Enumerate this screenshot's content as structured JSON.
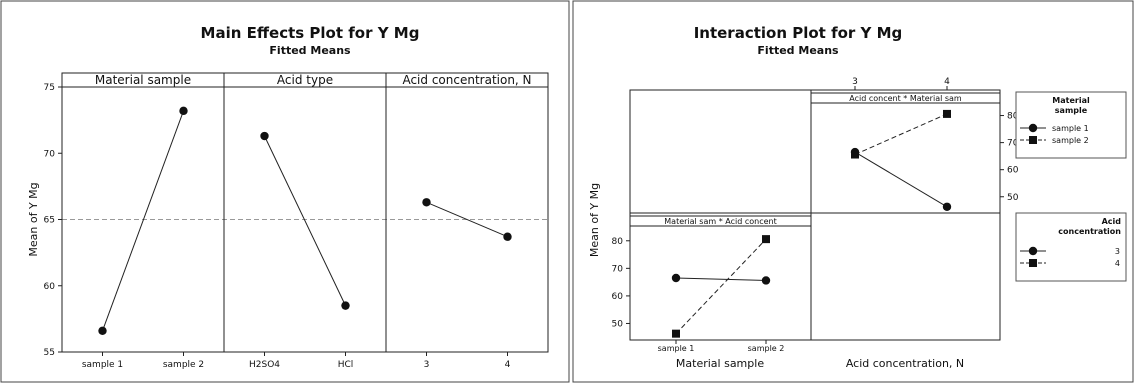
{
  "chart_data": [
    {
      "type": "line",
      "title": "Main Effects Plot for Y Mg",
      "subtitle": "Fitted Means",
      "ylabel": "Mean of Y Mg",
      "ylim": [
        55,
        75
      ],
      "yticks": [
        55,
        60,
        65,
        70,
        75
      ],
      "reference_line": 65,
      "panels": [
        {
          "title": "Material sample",
          "categories": [
            "sample 1",
            "sample 2"
          ],
          "values": [
            56.6,
            73.2
          ]
        },
        {
          "title": "Acid type",
          "categories": [
            "H2SO4",
            "HCl"
          ],
          "values": [
            71.3,
            58.5
          ]
        },
        {
          "title": "Acid concentration, N",
          "categories": [
            "3",
            "4"
          ],
          "values": [
            66.3,
            63.7
          ]
        }
      ]
    },
    {
      "type": "line",
      "title": "Interaction Plot for Y Mg",
      "subtitle": "Fitted Means",
      "ylabel": "Mean of Y Mg",
      "yticks": [
        50,
        60,
        70,
        80
      ],
      "panels": [
        {
          "title": "Acid concent * Material sam",
          "x": [
            "3",
            "4"
          ],
          "series": [
            {
              "name": "sample 1",
              "marker": "circle",
              "line": "solid",
              "values": [
                66.5,
                46.3
              ]
            },
            {
              "name": "sample 2",
              "marker": "square",
              "line": "dashed",
              "values": [
                65.6,
                80.6
              ]
            }
          ]
        },
        {
          "title": "Material sam * Acid concent",
          "x": [
            "sample 1",
            "sample 2"
          ],
          "xlabel": "Material sample",
          "series": [
            {
              "name": "3",
              "marker": "circle",
              "line": "solid",
              "values": [
                66.5,
                65.6
              ]
            },
            {
              "name": "4",
              "marker": "square",
              "line": "dashed",
              "values": [
                46.3,
                80.6
              ]
            }
          ]
        }
      ],
      "xlabel_right": "Acid concentration, N",
      "legends": [
        {
          "title_lines": [
            "Material",
            "sample"
          ],
          "entries": [
            "sample 1",
            "sample 2"
          ]
        },
        {
          "title_lines": [
            "Acid",
            "concentration"
          ],
          "entries": [
            "3",
            "4"
          ]
        }
      ]
    }
  ]
}
